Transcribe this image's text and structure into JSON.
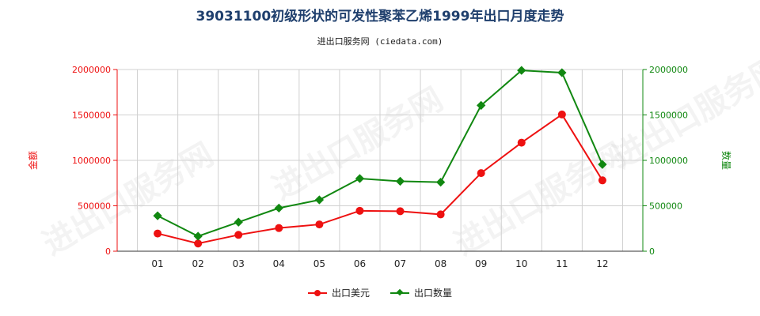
{
  "title": "39031100初级形状的可发性聚苯乙烯1999年出口月度走势",
  "subtitle": "进出口服务网 (ciedata.com)",
  "watermark": "进出口服务网",
  "colors": {
    "usd": "#ee1111",
    "qty": "#118811",
    "title": "#1f3f6d",
    "grid": "#d0d0d0"
  },
  "chart_data": {
    "type": "line",
    "categories": [
      "01",
      "02",
      "03",
      "04",
      "05",
      "06",
      "07",
      "08",
      "09",
      "10",
      "11",
      "12"
    ],
    "y_left": {
      "label": "金额",
      "ticks": [
        "0",
        "500000",
        "1000000",
        "1500000",
        "2000000"
      ],
      "range": [
        0,
        2000000
      ]
    },
    "y_right": {
      "label": "数量",
      "ticks": [
        "0",
        "500000",
        "1000000",
        "1500000",
        "2000000"
      ],
      "range": [
        0,
        2000000
      ]
    },
    "grid": true,
    "legend_position": "bottom",
    "series": [
      {
        "name": "出口美元",
        "axis": "left",
        "marker": "circle",
        "values": [
          195000,
          85000,
          180000,
          255000,
          295000,
          445000,
          440000,
          405000,
          860000,
          1195000,
          1505000,
          780000
        ]
      },
      {
        "name": "出口数量",
        "axis": "right",
        "marker": "diamond",
        "values": [
          390000,
          165000,
          320000,
          475000,
          565000,
          800000,
          770000,
          760000,
          1605000,
          1990000,
          1965000,
          955000
        ]
      }
    ]
  }
}
